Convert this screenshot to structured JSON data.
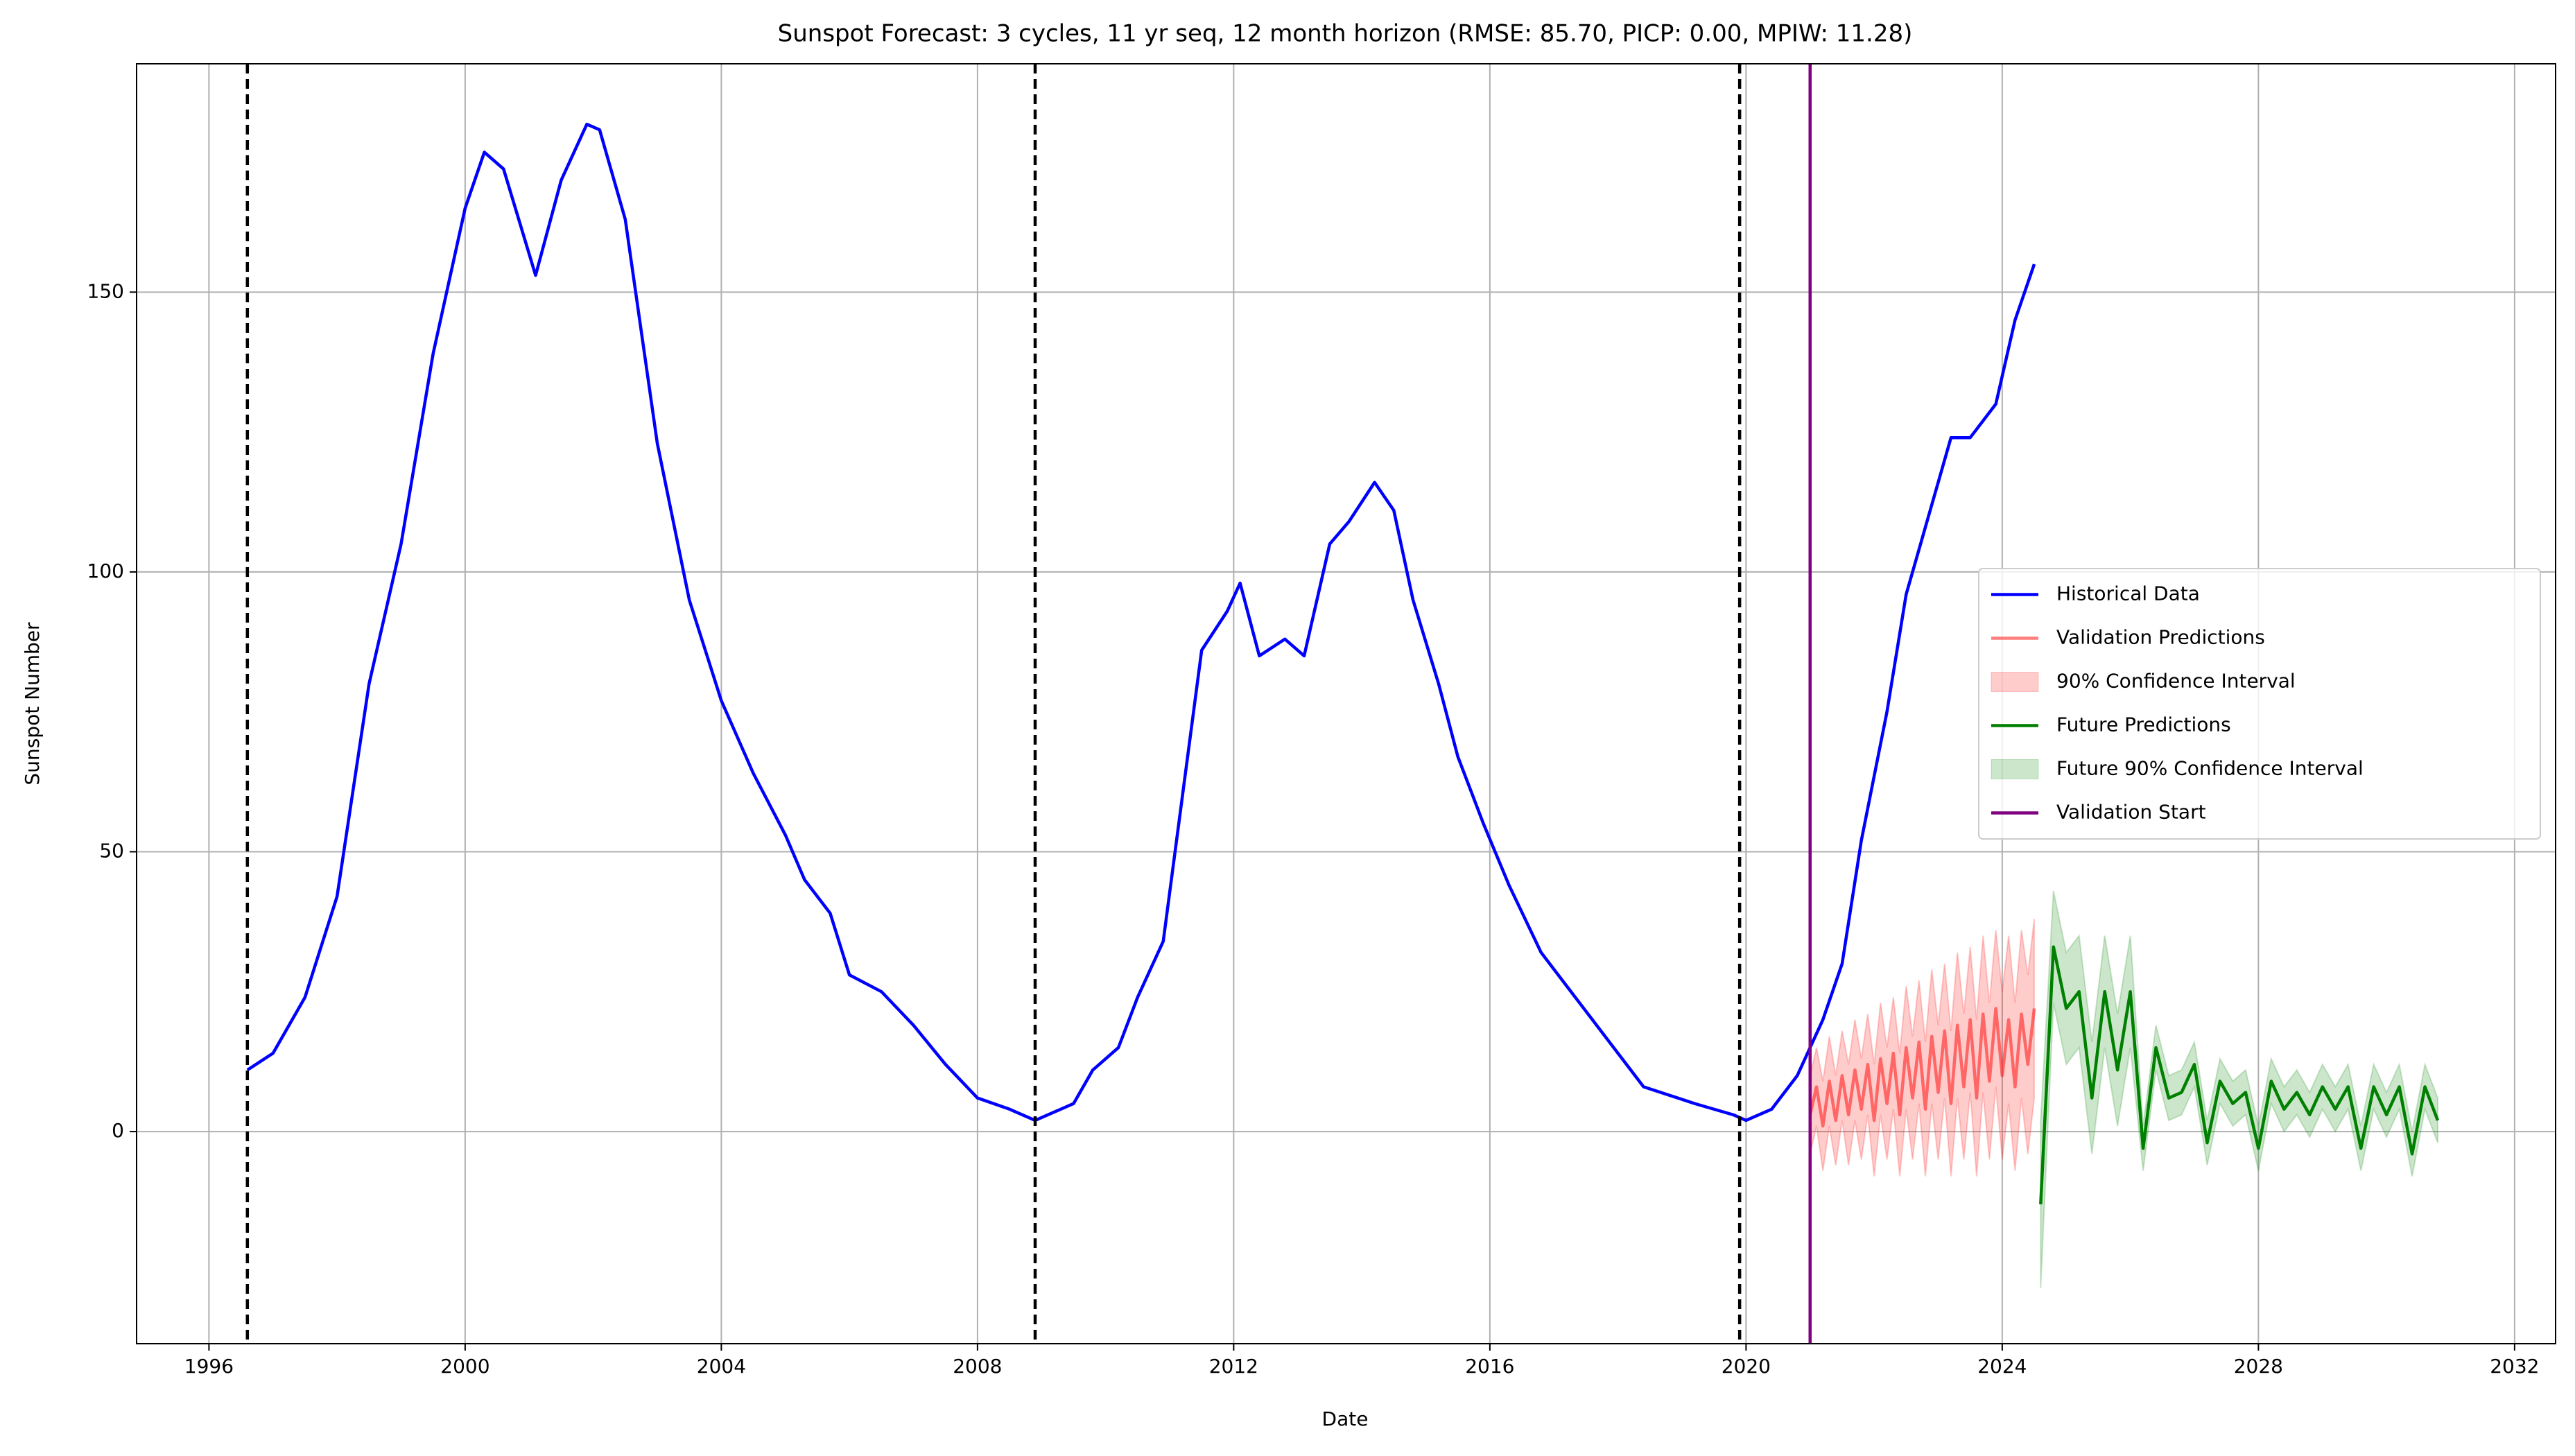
{
  "chart_data": {
    "type": "line",
    "title": "Sunspot Forecast: 3 cycles, 11 yr seq, 12 month horizon (RMSE: 85.70, PICP: 0.00, MPIW: 11.28)",
    "x_label": "Date",
    "y_label": "Sunspot Number",
    "xlim": [
      1994.87,
      2032.64
    ],
    "ylim": [
      -37.9,
      190.8
    ],
    "xticks": [
      1996,
      2000,
      2004,
      2008,
      2012,
      2016,
      2020,
      2024,
      2028,
      2032
    ],
    "yticks": [
      0,
      50,
      100,
      150
    ],
    "grid": true,
    "legend": "center right",
    "cycle_lines": {
      "color": "#000000",
      "x": [
        1996.6,
        2008.9,
        2019.9
      ]
    },
    "series": [
      {
        "name": "Historical Data",
        "kind": "line",
        "color": "#0000ff",
        "x": [
          1996.6,
          1997.0,
          1997.5,
          1998.0,
          1998.5,
          1999.0,
          1999.5,
          2000.0,
          2000.3,
          2000.6,
          2001.1,
          2001.5,
          2001.9,
          2002.1,
          2002.5,
          2003.0,
          2003.5,
          2004.0,
          2004.5,
          2005.0,
          2005.3,
          2005.7,
          2006.0,
          2006.5,
          2007.0,
          2007.5,
          2008.0,
          2008.5,
          2008.9,
          2009.5,
          2009.8,
          2010.2,
          2010.5,
          2010.9,
          2011.2,
          2011.5,
          2011.9,
          2012.1,
          2012.4,
          2012.8,
          2013.1,
          2013.5,
          2013.8,
          2014.2,
          2014.5,
          2014.8,
          2015.2,
          2015.5,
          2015.9,
          2016.3,
          2016.8,
          2017.2,
          2017.6,
          2018.0,
          2018.4,
          2018.8,
          2019.2,
          2019.8,
          2020.0,
          2020.4,
          2020.8,
          2021.2,
          2021.5,
          2021.8,
          2022.2,
          2022.5,
          2022.9,
          2023.2,
          2023.5,
          2023.9,
          2024.2,
          2024.5
        ],
        "values": [
          11,
          14,
          24,
          42,
          80,
          105,
          139,
          165,
          175,
          172,
          153,
          170,
          180,
          179,
          163,
          123,
          95,
          77,
          64,
          53,
          45,
          39,
          28,
          25,
          19,
          12,
          6,
          4,
          2,
          5,
          11,
          15,
          24,
          34,
          60,
          86,
          93,
          98,
          85,
          88,
          85,
          105,
          109,
          116,
          111,
          95,
          80,
          67,
          55,
          44,
          32,
          26,
          20,
          14,
          8,
          6.5,
          5,
          3,
          2,
          4,
          10,
          20,
          30,
          52,
          75,
          96,
          112,
          124,
          124,
          130,
          145,
          155
        ]
      },
      {
        "name": "Validation Predictions",
        "kind": "line",
        "color": "#ff0000",
        "opacity": 0.5,
        "x": [
          2021.0,
          2021.1,
          2021.2,
          2021.3,
          2021.4,
          2021.5,
          2021.6,
          2021.7,
          2021.8,
          2021.9,
          2022.0,
          2022.1,
          2022.2,
          2022.3,
          2022.4,
          2022.5,
          2022.6,
          2022.7,
          2022.8,
          2022.9,
          2023.0,
          2023.1,
          2023.2,
          2023.3,
          2023.4,
          2023.5,
          2023.6,
          2023.7,
          2023.8,
          2023.9,
          2024.0,
          2024.1,
          2024.2,
          2024.3,
          2024.4,
          2024.5
        ],
        "values": [
          3,
          8,
          1,
          9,
          2,
          10,
          3,
          11,
          4,
          12,
          2,
          13,
          5,
          14,
          3,
          15,
          6,
          16,
          4,
          17,
          7,
          18,
          5,
          19,
          8,
          20,
          6,
          21,
          9,
          22,
          10,
          20,
          8,
          21,
          12,
          22
        ]
      },
      {
        "name": "90% Confidence Interval",
        "kind": "band",
        "color": "#ff0000",
        "opacity": 0.2,
        "x": [
          2021.0,
          2021.1,
          2021.2,
          2021.3,
          2021.4,
          2021.5,
          2021.6,
          2021.7,
          2021.8,
          2021.9,
          2022.0,
          2022.1,
          2022.2,
          2022.3,
          2022.4,
          2022.5,
          2022.6,
          2022.7,
          2022.8,
          2022.9,
          2023.0,
          2023.1,
          2023.2,
          2023.3,
          2023.4,
          2023.5,
          2023.6,
          2023.7,
          2023.8,
          2023.9,
          2024.0,
          2024.1,
          2024.2,
          2024.3,
          2024.4,
          2024.5
        ],
        "lower": [
          -4,
          1,
          -7,
          1,
          -6,
          2,
          -6,
          2,
          -5,
          3,
          -8,
          3,
          -5,
          4,
          -8,
          4,
          -5,
          5,
          -8,
          5,
          -5,
          6,
          -8,
          6,
          -5,
          7,
          -8,
          7,
          -5,
          8,
          -5,
          5,
          -7,
          6,
          -4,
          6
        ],
        "upper": [
          10,
          15,
          9,
          17,
          10,
          18,
          12,
          20,
          13,
          21,
          12,
          23,
          15,
          24,
          14,
          26,
          17,
          27,
          16,
          29,
          19,
          30,
          18,
          32,
          21,
          33,
          20,
          35,
          23,
          36,
          25,
          35,
          23,
          36,
          28,
          38
        ]
      },
      {
        "name": "Future Predictions",
        "kind": "line",
        "color": "#008000",
        "x": [
          2024.6,
          2024.8,
          2025.0,
          2025.2,
          2025.4,
          2025.6,
          2025.8,
          2026.0,
          2026.2,
          2026.4,
          2026.6,
          2026.8,
          2027.0,
          2027.2,
          2027.4,
          2027.6,
          2027.8,
          2028.0,
          2028.2,
          2028.4,
          2028.6,
          2028.8,
          2029.0,
          2029.2,
          2029.4,
          2029.6,
          2029.8,
          2030.0,
          2030.2,
          2030.4,
          2030.6,
          2030.8
        ],
        "values": [
          -13,
          33,
          22,
          25,
          6,
          25,
          11,
          25,
          -3,
          15,
          6,
          7,
          12,
          -2,
          9,
          5,
          7,
          -3,
          9,
          4,
          7,
          3,
          8,
          4,
          8,
          -3,
          8,
          3,
          8,
          -4,
          8,
          2
        ]
      },
      {
        "name": "Future 90% Confidence Interval",
        "kind": "band",
        "color": "#008000",
        "opacity": 0.2,
        "x": [
          2024.6,
          2024.8,
          2025.0,
          2025.2,
          2025.4,
          2025.6,
          2025.8,
          2026.0,
          2026.2,
          2026.4,
          2026.6,
          2026.8,
          2027.0,
          2027.2,
          2027.4,
          2027.6,
          2027.8,
          2028.0,
          2028.2,
          2028.4,
          2028.6,
          2028.8,
          2029.0,
          2029.2,
          2029.4,
          2029.6,
          2029.8,
          2030.0,
          2030.2,
          2030.4,
          2030.6,
          2030.8
        ],
        "lower": [
          -28,
          23,
          12,
          15,
          -4,
          15,
          1,
          15,
          -7,
          11,
          2,
          3,
          8,
          -6,
          5,
          1,
          3,
          -7,
          5,
          0,
          3,
          -1,
          4,
          0,
          4,
          -7,
          4,
          -1,
          4,
          -8,
          4,
          -2
        ],
        "upper": [
          2,
          43,
          32,
          35,
          16,
          35,
          21,
          35,
          1,
          19,
          10,
          11,
          16,
          2,
          13,
          9,
          11,
          1,
          13,
          8,
          11,
          7,
          12,
          8,
          12,
          1,
          12,
          7,
          12,
          0,
          12,
          6
        ]
      },
      {
        "name": "Validation Start",
        "kind": "vline",
        "color": "#800080",
        "x": 2021.0
      }
    ]
  }
}
